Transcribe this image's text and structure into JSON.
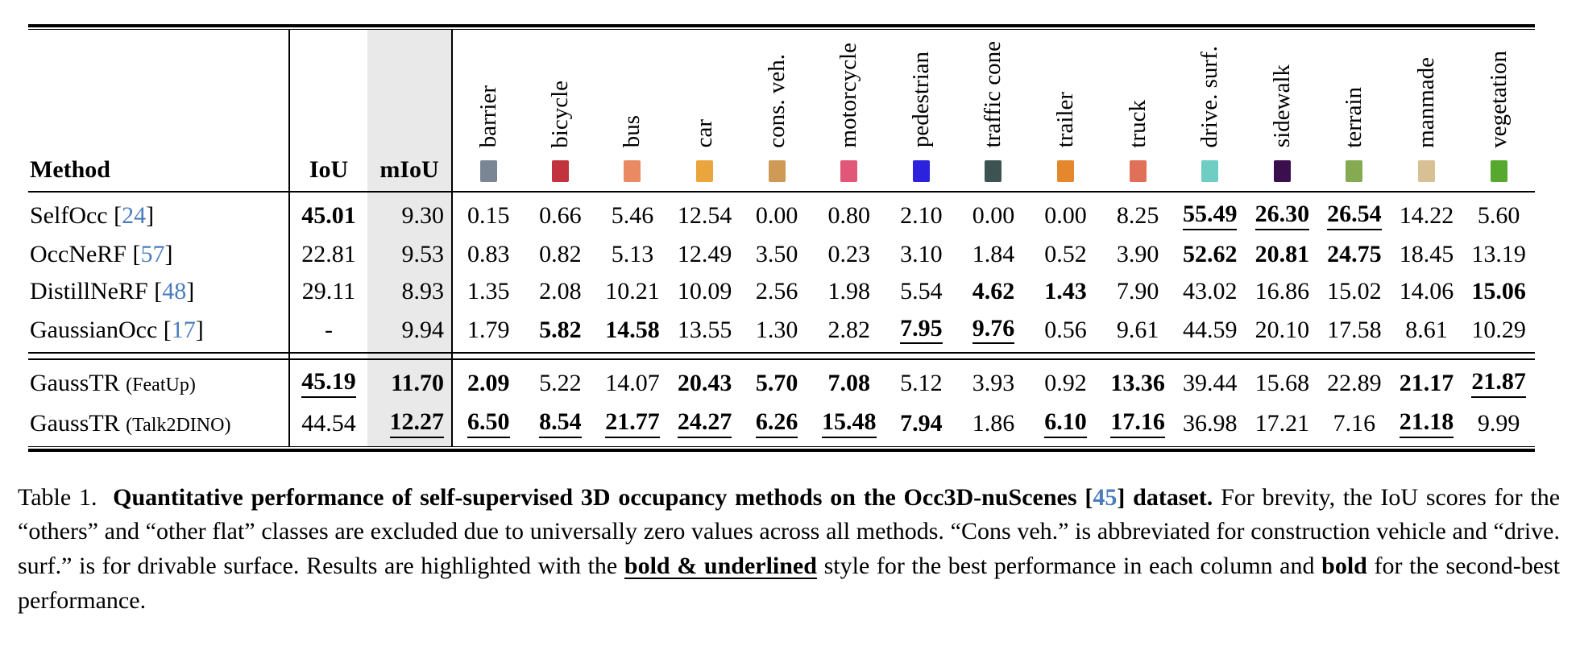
{
  "page": {
    "background": "#ffffff"
  },
  "table": {
    "method_header": "Method",
    "iou_header": "IoU",
    "miou_header": "mIoU",
    "miou_band_color": "#e9e9e9",
    "link_color": "#4a7cbf",
    "classes": [
      {
        "label": "barrier",
        "color": "#7b8695"
      },
      {
        "label": "bicycle",
        "color": "#c2333e"
      },
      {
        "label": "bus",
        "color": "#e98a62"
      },
      {
        "label": "car",
        "color": "#eaa53d"
      },
      {
        "label": "cons. veh.",
        "color": "#cf9a55"
      },
      {
        "label": "motorcycle",
        "color": "#e25677"
      },
      {
        "label": "pedestrian",
        "color": "#2c21dd"
      },
      {
        "label": "traffic cone",
        "color": "#3d5351"
      },
      {
        "label": "trailer",
        "color": "#e5872c"
      },
      {
        "label": "truck",
        "color": "#e07158"
      },
      {
        "label": "drive. surf.",
        "color": "#70cdc3"
      },
      {
        "label": "sidewalk",
        "color": "#3b0f4e"
      },
      {
        "label": "terrain",
        "color": "#85aa52"
      },
      {
        "label": "manmade",
        "color": "#d8c095"
      },
      {
        "label": "vegetation",
        "color": "#57a82f"
      }
    ],
    "groups": [
      {
        "rows": [
          {
            "method": "SelfOcc",
            "cite": "24",
            "iou": {
              "v": "45.01",
              "s": "b"
            },
            "miou": {
              "v": "9.30",
              "s": "n"
            },
            "cells": [
              [
                "0.15",
                "n"
              ],
              [
                "0.66",
                "n"
              ],
              [
                "5.46",
                "n"
              ],
              [
                "12.54",
                "n"
              ],
              [
                "0.00",
                "n"
              ],
              [
                "0.80",
                "n"
              ],
              [
                "2.10",
                "n"
              ],
              [
                "0.00",
                "n"
              ],
              [
                "0.00",
                "n"
              ],
              [
                "8.25",
                "n"
              ],
              [
                "55.49",
                "bu"
              ],
              [
                "26.30",
                "bu"
              ],
              [
                "26.54",
                "bu"
              ],
              [
                "14.22",
                "n"
              ],
              [
                "5.60",
                "n"
              ]
            ]
          },
          {
            "method": "OccNeRF",
            "cite": "57",
            "iou": {
              "v": "22.81",
              "s": "n"
            },
            "miou": {
              "v": "9.53",
              "s": "n"
            },
            "cells": [
              [
                "0.83",
                "n"
              ],
              [
                "0.82",
                "n"
              ],
              [
                "5.13",
                "n"
              ],
              [
                "12.49",
                "n"
              ],
              [
                "3.50",
                "n"
              ],
              [
                "0.23",
                "n"
              ],
              [
                "3.10",
                "n"
              ],
              [
                "1.84",
                "n"
              ],
              [
                "0.52",
                "n"
              ],
              [
                "3.90",
                "n"
              ],
              [
                "52.62",
                "b"
              ],
              [
                "20.81",
                "b"
              ],
              [
                "24.75",
                "b"
              ],
              [
                "18.45",
                "n"
              ],
              [
                "13.19",
                "n"
              ]
            ]
          },
          {
            "method": "DistillNeRF",
            "cite": "48",
            "iou": {
              "v": "29.11",
              "s": "n"
            },
            "miou": {
              "v": "8.93",
              "s": "n"
            },
            "cells": [
              [
                "1.35",
                "n"
              ],
              [
                "2.08",
                "n"
              ],
              [
                "10.21",
                "n"
              ],
              [
                "10.09",
                "n"
              ],
              [
                "2.56",
                "n"
              ],
              [
                "1.98",
                "n"
              ],
              [
                "5.54",
                "n"
              ],
              [
                "4.62",
                "b"
              ],
              [
                "1.43",
                "b"
              ],
              [
                "7.90",
                "n"
              ],
              [
                "43.02",
                "n"
              ],
              [
                "16.86",
                "n"
              ],
              [
                "15.02",
                "n"
              ],
              [
                "14.06",
                "n"
              ],
              [
                "15.06",
                "b"
              ]
            ]
          },
          {
            "method": "GaussianOcc",
            "cite": "17",
            "iou": {
              "v": "-",
              "s": "n"
            },
            "miou": {
              "v": "9.94",
              "s": "n"
            },
            "cells": [
              [
                "1.79",
                "n"
              ],
              [
                "5.82",
                "b"
              ],
              [
                "14.58",
                "b"
              ],
              [
                "13.55",
                "n"
              ],
              [
                "1.30",
                "n"
              ],
              [
                "2.82",
                "n"
              ],
              [
                "7.95",
                "bu"
              ],
              [
                "9.76",
                "bu"
              ],
              [
                "0.56",
                "n"
              ],
              [
                "9.61",
                "n"
              ],
              [
                "44.59",
                "n"
              ],
              [
                "20.10",
                "n"
              ],
              [
                "17.58",
                "n"
              ],
              [
                "8.61",
                "n"
              ],
              [
                "10.29",
                "n"
              ]
            ]
          }
        ]
      },
      {
        "rows": [
          {
            "method": "GaussTR",
            "suffix": "(FeatUp)",
            "iou": {
              "v": "45.19",
              "s": "bu"
            },
            "miou": {
              "v": "11.70",
              "s": "b"
            },
            "cells": [
              [
                "2.09",
                "b"
              ],
              [
                "5.22",
                "n"
              ],
              [
                "14.07",
                "n"
              ],
              [
                "20.43",
                "b"
              ],
              [
                "5.70",
                "b"
              ],
              [
                "7.08",
                "b"
              ],
              [
                "5.12",
                "n"
              ],
              [
                "3.93",
                "n"
              ],
              [
                "0.92",
                "n"
              ],
              [
                "13.36",
                "b"
              ],
              [
                "39.44",
                "n"
              ],
              [
                "15.68",
                "n"
              ],
              [
                "22.89",
                "n"
              ],
              [
                "21.17",
                "b"
              ],
              [
                "21.87",
                "bu"
              ]
            ]
          },
          {
            "method": "GaussTR",
            "suffix": "(Talk2DINO)",
            "iou": {
              "v": "44.54",
              "s": "n"
            },
            "miou": {
              "v": "12.27",
              "s": "bu"
            },
            "cells": [
              [
                "6.50",
                "bu"
              ],
              [
                "8.54",
                "bu"
              ],
              [
                "21.77",
                "bu"
              ],
              [
                "24.27",
                "bu"
              ],
              [
                "6.26",
                "bu"
              ],
              [
                "15.48",
                "bu"
              ],
              [
                "7.94",
                "b"
              ],
              [
                "1.86",
                "n"
              ],
              [
                "6.10",
                "bu"
              ],
              [
                "17.16",
                "bu"
              ],
              [
                "36.98",
                "n"
              ],
              [
                "17.21",
                "n"
              ],
              [
                "7.16",
                "n"
              ],
              [
                "21.18",
                "bu"
              ],
              [
                "9.99",
                "n"
              ]
            ]
          }
        ]
      }
    ]
  },
  "caption": {
    "prefix": "Table 1.",
    "bold_lead": "Quantitative performance of self-supervised 3D occupancy methods on the Occ3D-nuScenes",
    "bold_cite": "45",
    "bold_tail": "dataset.",
    "body_1": "For brevity, the IoU scores for the “others” and “other flat” classes are excluded due to universally zero values across all methods. “Cons veh.” is abbreviated for construction vehicle and “drive. surf.” is for drivable surface. Results are highlighted with the",
    "bold_underlined_phrase": "bold & underlined",
    "body_2": "style for the best performance in each column and",
    "bold_word": "bold",
    "body_3": "for the second-best performance."
  }
}
